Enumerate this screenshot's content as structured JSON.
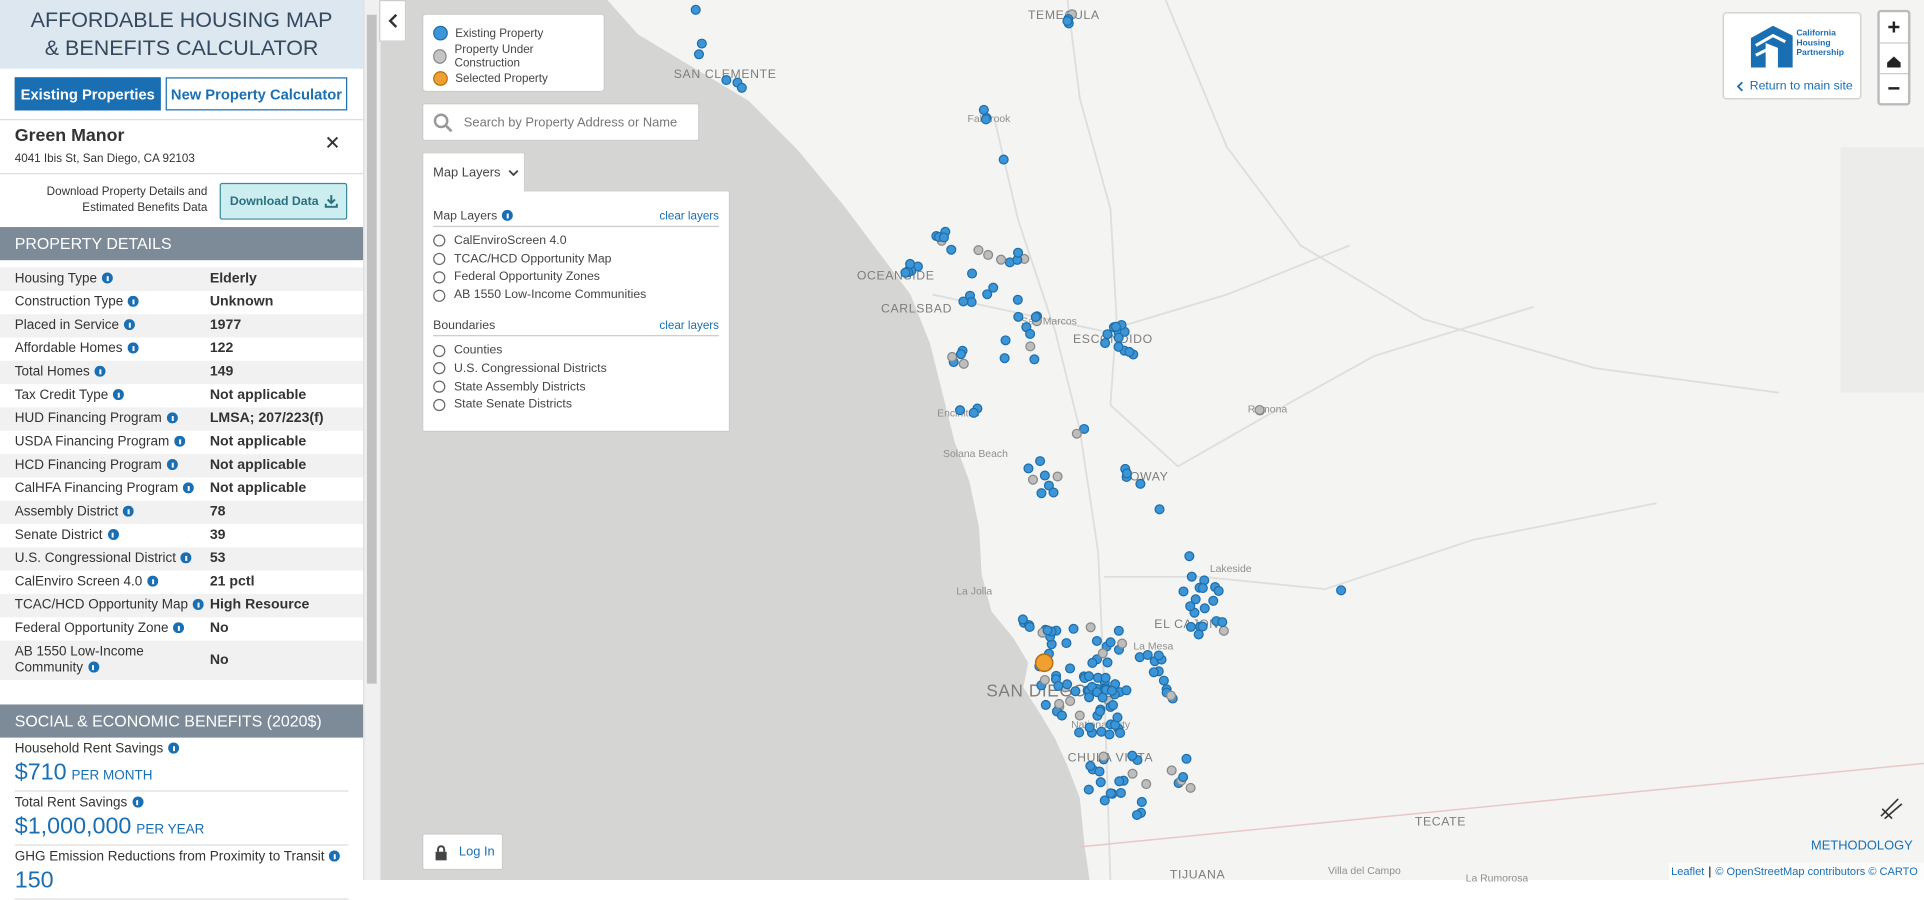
{
  "header": {
    "title_lines": [
      "AFFORDABLE HOUSING MAP",
      "& BENEFITS CALCULATOR"
    ]
  },
  "tabs": [
    "Existing Properties",
    "New Property Calculator"
  ],
  "property": {
    "name": "Green Manor",
    "address": "4041 Ibis St, San Diego, CA 92103"
  },
  "download": {
    "text": "Download Property Details and Estimated Benefits Data",
    "button": "Download Data"
  },
  "details": {
    "title": "PROPERTY DETAILS",
    "rows": [
      [
        "Housing Type",
        "Elderly"
      ],
      [
        "Construction Type",
        "Unknown"
      ],
      [
        "Placed in Service",
        "1977"
      ],
      [
        "Affordable Homes",
        "122"
      ],
      [
        "Total Homes",
        "149"
      ],
      [
        "Tax Credit Type",
        "Not applicable"
      ],
      [
        "HUD Financing Program",
        "LMSA; 207/223(f)"
      ],
      [
        "USDA Financing Program",
        "Not applicable"
      ],
      [
        "HCD Financing Program",
        "Not applicable"
      ],
      [
        "CalHFA Financing Program",
        "Not applicable"
      ],
      [
        "Assembly District",
        "78"
      ],
      [
        "Senate District",
        "39"
      ],
      [
        "U.S. Congressional District",
        "53"
      ],
      [
        "CalEnviro Screen 4.0",
        "21 pctl"
      ],
      [
        "TCAC/HCD Opportunity Map",
        "High Resource"
      ],
      [
        "Federal Opportunity Zone",
        "No"
      ],
      [
        "AB 1550 Low-Income Community",
        "No"
      ]
    ]
  },
  "benefits": {
    "title": "SOCIAL & ECONOMIC BENEFITS (2020$)",
    "items": [
      {
        "label": "Household Rent Savings",
        "value": "$710",
        "unit": "PER MONTH"
      },
      {
        "label": "Total Rent Savings",
        "value": "$1,000,000",
        "unit": "PER YEAR"
      },
      {
        "label": "GHG Emission Reductions from Proximity to Transit",
        "value": "150"
      }
    ]
  },
  "legend": [
    "Existing Property",
    "Property Under Construction",
    "Selected Property"
  ],
  "search": {
    "placeholder": "Search by Property Address or Name"
  },
  "layers": {
    "toggle": "Map Layers",
    "sections": [
      {
        "title": "Map Layers",
        "clear": "clear layers",
        "options": [
          "CalEnviroScreen 4.0",
          "TCAC/HCD Opportunity Map",
          "Federal Opportunity Zones",
          "AB 1550 Low-Income Communities"
        ]
      },
      {
        "title": "Boundaries",
        "clear": "clear layers",
        "options": [
          "Counties",
          "U.S. Congressional Districts",
          "State Assembly Districts",
          "State Senate Districts"
        ]
      }
    ]
  },
  "logo": {
    "name": "California Housing Partnership",
    "link": "Return to main site"
  },
  "login": "Log In",
  "methodology": "METHODOLOGY",
  "attribution": {
    "leaflet": "Leaflet",
    "credits": "© OpenStreetMap contributors © CARTO"
  },
  "places": [
    "TEMECULA",
    "SAN CLEMENTE",
    "Fallbrook",
    "OCEANSIDE",
    "CARLSBAD",
    "San Marcos",
    "ESCONDIDO",
    "Ramona",
    "Encinitas",
    "Solana Beach",
    "POWAY",
    "La Jolla",
    "Lakeside",
    "EL CAJON",
    "La Mesa",
    "SAN DIEGO",
    "National City",
    "CHULA VISTA",
    "TECATE",
    "TIJUANA",
    "Villa del Campo",
    "La Rumorosa"
  ]
}
